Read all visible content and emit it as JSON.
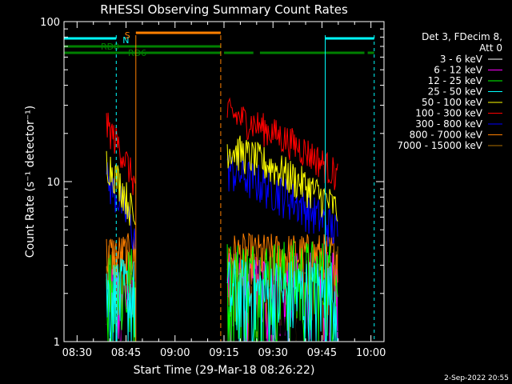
{
  "chart_data": {
    "type": "line",
    "title": "RHESSI Observing Summary Count Rates",
    "xlabel": "Start Time (29-Mar-18 08:26:22)",
    "ylabel": "Count Rate (s⁻¹ detector⁻¹)",
    "yscale": "log",
    "ylim": [
      1,
      100
    ],
    "xlim": [
      "08:26",
      "10:04"
    ],
    "x_ticks": [
      "08:30",
      "08:45",
      "09:00",
      "09:15",
      "09:30",
      "09:45",
      "10:00"
    ],
    "y_ticks": [
      "1",
      "10",
      "100"
    ],
    "legend_header": [
      "Det 3, FDecim 8,",
      "Att 0"
    ],
    "legend_position": "right",
    "series": [
      {
        "name": "3 - 6 keV",
        "color": "#000000",
        "values": [
          [
            [
              "08:39",
              "08:48"
            ],
            1.4
          ],
          [
            [
              "09:16",
              "09:50"
            ],
            1.6
          ]
        ]
      },
      {
        "name": "6 - 12 keV",
        "color": "#ff00ff",
        "values": [
          [
            [
              "08:39",
              "08:48"
            ],
            2.0
          ],
          [
            [
              "09:16",
              "09:50"
            ],
            2.2
          ]
        ]
      },
      {
        "name": "12 - 25 keV",
        "color": "#00ff00",
        "values": [
          [
            [
              "08:39",
              "08:48"
            ],
            2.3
          ],
          [
            [
              "09:16",
              "09:50"
            ],
            2.5
          ]
        ]
      },
      {
        "name": "25 - 50 keV",
        "color": "#00ffff",
        "values": [
          [
            [
              "08:39",
              "08:48"
            ],
            2.0
          ],
          [
            [
              "09:16",
              "09:50"
            ],
            2.0
          ]
        ]
      },
      {
        "name": "50 - 100 keV",
        "color": "#ffff00",
        "values": [
          [
            [
              "08:39",
              "08:48"
            ],
            9.0
          ],
          [
            [
              "09:16",
              "09:50"
            ],
            11.0
          ]
        ]
      },
      {
        "name": "100 - 300 keV",
        "color": "#ff0000",
        "values": [
          [
            [
              "08:39",
              "08:48"
            ],
            15.0
          ],
          [
            [
              "09:16",
              "09:50"
            ],
            18.0
          ]
        ]
      },
      {
        "name": "300 - 800 keV",
        "color": "#0000ff",
        "values": [
          [
            [
              "08:39",
              "08:48"
            ],
            7.0
          ],
          [
            [
              "09:16",
              "09:50"
            ],
            8.0
          ]
        ]
      },
      {
        "name": "800 - 7000 keV",
        "color": "#ff8000",
        "values": [
          [
            [
              "08:39",
              "08:48"
            ],
            3.5
          ],
          [
            [
              "09:16",
              "09:50"
            ],
            3.5
          ]
        ]
      },
      {
        "name": "7000 - 15000 keV",
        "color": "#b07000",
        "values": [
          [
            [
              "08:39",
              "08:48"
            ],
            2.5
          ],
          [
            [
              "09:16",
              "09:50"
            ],
            2.5
          ]
        ]
      }
    ],
    "flags": [
      {
        "label": "N",
        "color": "#00ffff",
        "intervals": [
          [
            "08:26",
            "08:42"
          ],
          [
            "09:46",
            "10:01"
          ]
        ]
      },
      {
        "label": "S",
        "color": "#ff8000",
        "intervals": [
          [
            "08:48",
            "09:14"
          ]
        ]
      },
      {
        "label": "RD0",
        "color": "#008000",
        "intervals": [
          [
            "08:26",
            "09:14"
          ]
        ]
      },
      {
        "label": "RD6",
        "color": "#008000",
        "intervals": [
          [
            "08:26",
            "09:14"
          ],
          [
            "09:15",
            "09:24"
          ],
          [
            "09:26",
            "09:58"
          ],
          [
            "09:59",
            "10:01"
          ]
        ]
      }
    ],
    "grid": false
  },
  "footer": {
    "timestamp": "2-Sep-2022 20:55"
  }
}
